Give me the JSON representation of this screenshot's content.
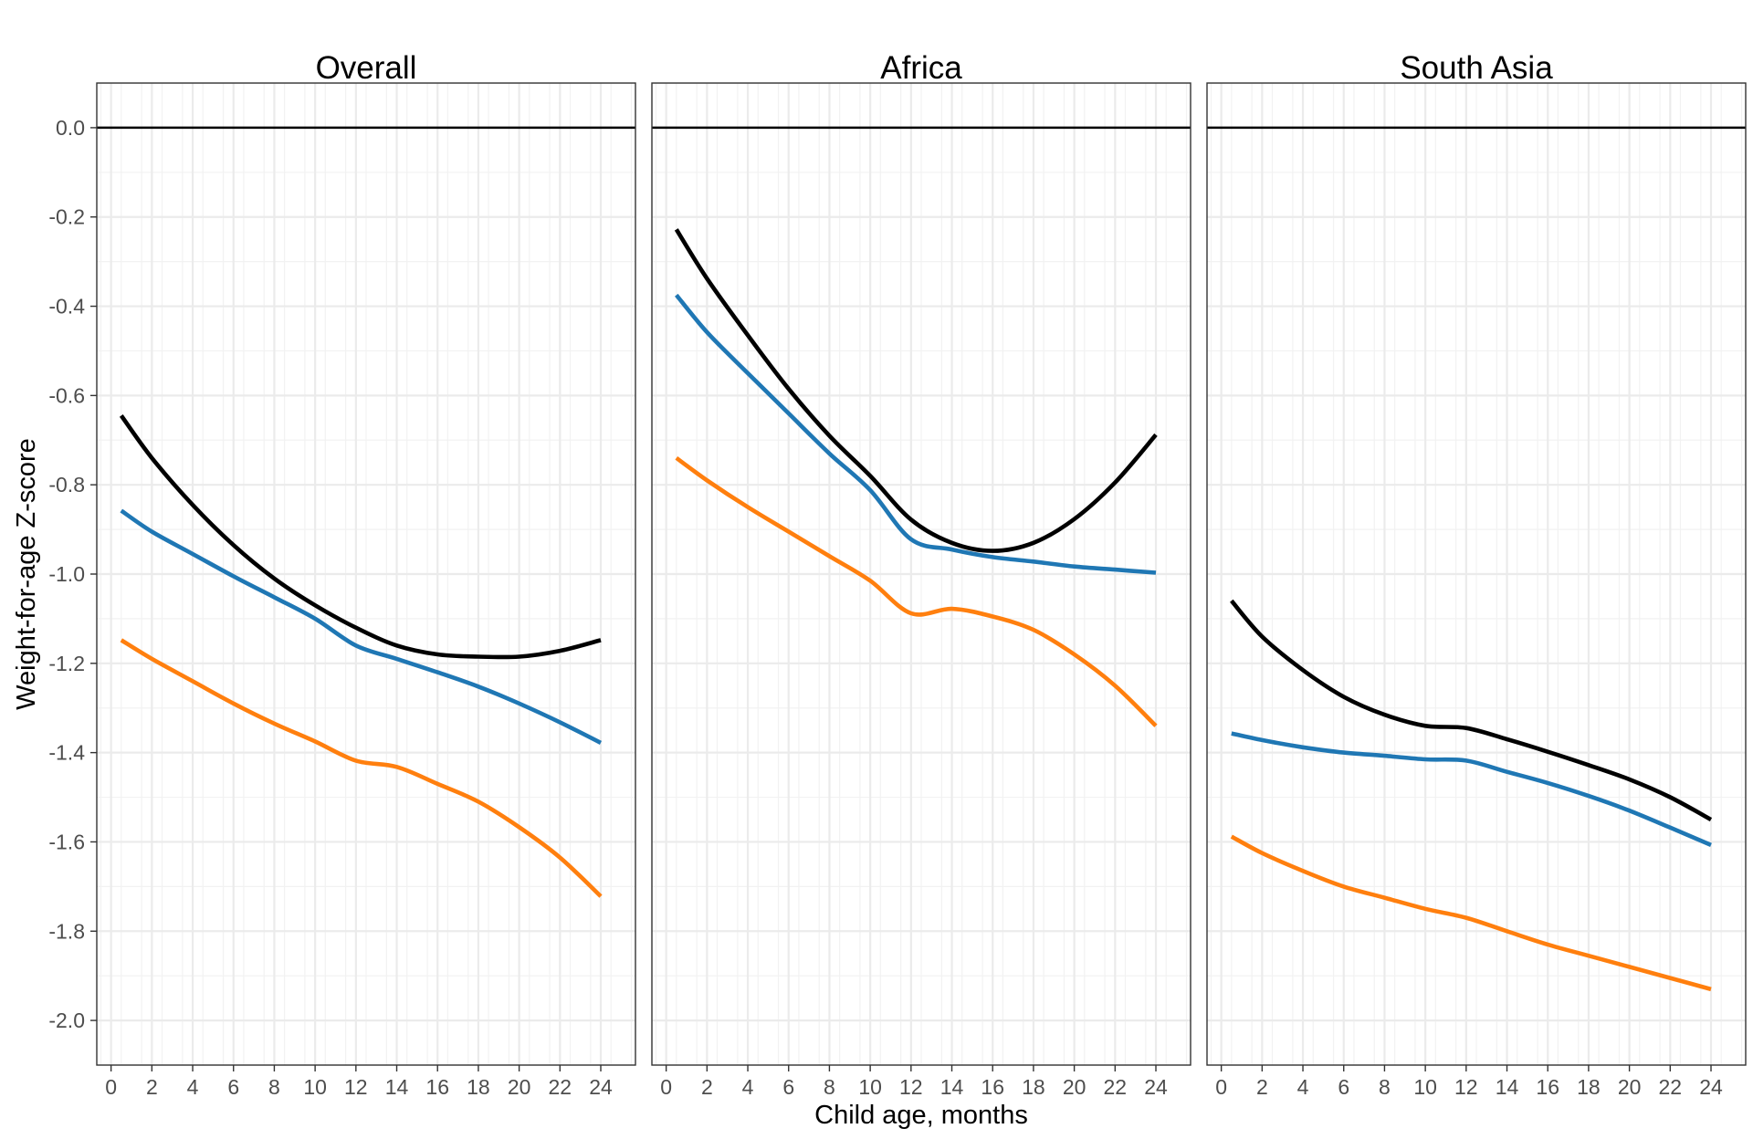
{
  "chart_data": {
    "type": "line",
    "xlabel": "Child age, months",
    "ylabel": "Weight-for-age Z-score",
    "xlim": [
      -0.7,
      25.7
    ],
    "ylim": [
      -2.1,
      0.1
    ],
    "x_ticks": [
      0,
      2,
      4,
      6,
      8,
      10,
      12,
      14,
      16,
      18,
      20,
      22,
      24
    ],
    "x_tick_labels": [
      "0",
      "2",
      "4",
      "6",
      "8",
      "10",
      "12",
      "14",
      "16",
      "18",
      "20",
      "22",
      "24"
    ],
    "y_ticks": [
      0.0,
      -0.2,
      -0.4,
      -0.6,
      -0.8,
      -1.0,
      -1.2,
      -1.4,
      -1.6,
      -1.8,
      -2.0
    ],
    "y_tick_labels": [
      "0.0",
      "-0.2",
      "-0.4",
      "-0.6",
      "-0.8",
      "-1.0",
      "-1.2",
      "-1.4",
      "-1.6",
      "-1.8",
      "-2.0"
    ],
    "reference_line": 0.0,
    "grid": true,
    "legend": "none",
    "x": [
      0.5,
      2,
      4,
      6,
      8,
      10,
      12,
      14,
      16,
      18,
      20,
      22,
      24
    ],
    "panels": [
      {
        "title": "Overall",
        "series": [
          {
            "color": "#000000",
            "values": [
              -0.645,
              -0.74,
              -0.845,
              -0.935,
              -1.01,
              -1.07,
              -1.12,
              -1.16,
              -1.18,
              -1.185,
              -1.185,
              -1.172,
              -1.148
            ]
          },
          {
            "color": "#1f77b4",
            "values": [
              -0.858,
              -0.905,
              -0.955,
              -1.005,
              -1.052,
              -1.1,
              -1.16,
              -1.19,
              -1.22,
              -1.252,
              -1.29,
              -1.332,
              -1.378
            ]
          },
          {
            "color": "#ff7f0e",
            "values": [
              -1.148,
              -1.19,
              -1.24,
              -1.29,
              -1.335,
              -1.375,
              -1.418,
              -1.432,
              -1.47,
              -1.51,
              -1.567,
              -1.635,
              -1.722
            ]
          }
        ]
      },
      {
        "title": "Africa",
        "series": [
          {
            "color": "#000000",
            "values": [
              -0.228,
              -0.338,
              -0.465,
              -0.585,
              -0.69,
              -0.78,
              -0.878,
              -0.93,
              -0.948,
              -0.93,
              -0.877,
              -0.795,
              -0.688
            ]
          },
          {
            "color": "#1f77b4",
            "values": [
              -0.375,
              -0.458,
              -0.55,
              -0.64,
              -0.73,
              -0.812,
              -0.922,
              -0.945,
              -0.962,
              -0.972,
              -0.983,
              -0.99,
              -0.997
            ]
          },
          {
            "color": "#ff7f0e",
            "values": [
              -0.74,
              -0.79,
              -0.85,
              -0.905,
              -0.96,
              -1.015,
              -1.088,
              -1.078,
              -1.095,
              -1.125,
              -1.18,
              -1.25,
              -1.34
            ]
          }
        ]
      },
      {
        "title": "South Asia",
        "series": [
          {
            "color": "#000000",
            "values": [
              -1.06,
              -1.14,
              -1.215,
              -1.275,
              -1.315,
              -1.34,
              -1.345,
              -1.37,
              -1.398,
              -1.428,
              -1.46,
              -1.5,
              -1.55
            ]
          },
          {
            "color": "#1f77b4",
            "values": [
              -1.357,
              -1.372,
              -1.388,
              -1.4,
              -1.407,
              -1.415,
              -1.418,
              -1.443,
              -1.468,
              -1.497,
              -1.53,
              -1.568,
              -1.607
            ]
          },
          {
            "color": "#ff7f0e",
            "values": [
              -1.588,
              -1.625,
              -1.665,
              -1.7,
              -1.725,
              -1.75,
              -1.77,
              -1.8,
              -1.83,
              -1.855,
              -1.88,
              -1.905,
              -1.93
            ]
          }
        ]
      }
    ]
  }
}
